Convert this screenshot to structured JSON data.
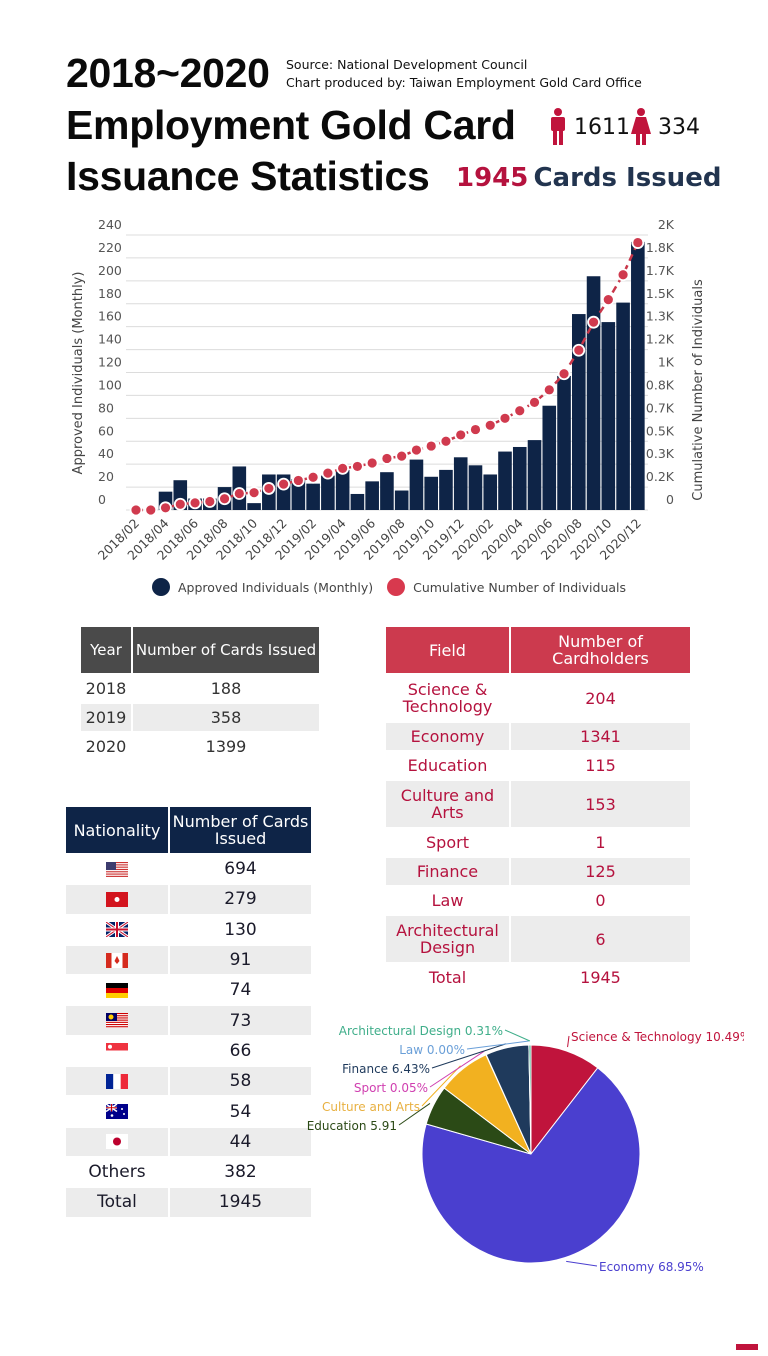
{
  "header": {
    "title_line1": "2018~2020",
    "title_line2": "Employment Gold Card",
    "title_line3": "Issuance Statistics",
    "source": "Source: National Development Council",
    "producer": "Chart produced by: Taiwan Employment Gold Card Office",
    "male_count": "1611",
    "female_count": "334",
    "total_count": "1945",
    "total_label": "Cards Issued",
    "male_icon": "male-person-icon",
    "female_icon": "female-person-icon"
  },
  "chart_data": [
    {
      "type": "bar+line",
      "ylabel": "Approved Individuals (Monthly)",
      "y2label": "Cumulative Number of Individuals",
      "ylim": [
        0,
        240
      ],
      "y2lim": [
        0,
        2000
      ],
      "yticks": [
        "0",
        "20",
        "40",
        "60",
        "80",
        "100",
        "120",
        "140",
        "160",
        "180",
        "200",
        "220",
        "240"
      ],
      "y2ticks": [
        "0",
        "0.2K",
        "0.3K",
        "0.5K",
        "0.7K",
        "0.8K",
        "1K",
        "1.2K",
        "1.3K",
        "1.5K",
        "1.7K",
        "1.8K",
        "2K"
      ],
      "grid": true,
      "legend_position": "bottom",
      "x": [
        "2018/02",
        "2018/03",
        "2018/04",
        "2018/05",
        "2018/06",
        "2018/07",
        "2018/08",
        "2018/09",
        "2018/10",
        "2018/11",
        "2018/12",
        "2019/01",
        "2019/02",
        "2019/03",
        "2019/04",
        "2019/05",
        "2019/06",
        "2019/07",
        "2019/08",
        "2019/09",
        "2019/10",
        "2019/11",
        "2019/12",
        "2020/01",
        "2020/02",
        "2020/03",
        "2020/04",
        "2020/05",
        "2020/06",
        "2020/07",
        "2020/08",
        "2020/09",
        "2020/10",
        "2020/11",
        "2020/12"
      ],
      "xticklabels": [
        "2018/02",
        "2018/04",
        "2018/06",
        "2018/08",
        "2018/10",
        "2018/12",
        "2019/02",
        "2019/04",
        "2019/06",
        "2019/08",
        "2019/10",
        "2019/12",
        "2020/02",
        "2020/04",
        "2020/06",
        "2020/08",
        "2020/10",
        "2020/12"
      ],
      "series": [
        {
          "name": "Approved Individuals (Monthly)",
          "type": "bar",
          "color": "#0e2447",
          "values": [
            0,
            0,
            16,
            26,
            10,
            10,
            20,
            38,
            6,
            31,
            31,
            27,
            23,
            30,
            35,
            14,
            25,
            33,
            17,
            44,
            29,
            35,
            46,
            39,
            31,
            51,
            55,
            61,
            91,
            117,
            171,
            204,
            164,
            181,
            234
          ]
        },
        {
          "name": "Cumulative Number of Individuals",
          "type": "line",
          "axis": "right",
          "color": "#c8374a",
          "values": [
            0,
            0,
            16,
            42,
            52,
            62,
            82,
            120,
            126,
            157,
            188,
            215,
            238,
            268,
            303,
            317,
            342,
            375,
            392,
            436,
            465,
            500,
            546,
            585,
            616,
            667,
            722,
            783,
            874,
            991,
            1162,
            1366,
            1530,
            1711,
            1945
          ]
        }
      ]
    },
    {
      "type": "pie",
      "slices": [
        {
          "label": "Science & Technology 10.49%",
          "value": 10.49,
          "color": "#c0143c"
        },
        {
          "label": "Economy 68.95%",
          "value": 68.95,
          "color": "#4a3fcf"
        },
        {
          "label": "Education 5.91",
          "value": 5.91,
          "color": "#2b4a16"
        },
        {
          "label": "Culture and Arts",
          "value": 7.87,
          "color": "#f2b120"
        },
        {
          "label": "Sport 0.05%",
          "value": 0.05,
          "color": "#d040b0"
        },
        {
          "label": "Finance 6.43%",
          "value": 6.43,
          "color": "#1f3a5c"
        },
        {
          "label": "Law 0.00%",
          "value": 0.0,
          "color": "#6a9fd8"
        },
        {
          "label": "Architectural Design 0.31%",
          "value": 0.31,
          "color": "#3fae8a"
        }
      ]
    }
  ],
  "year_table": {
    "headers": [
      "Year",
      "Number of Cards Issued"
    ],
    "rows": [
      [
        "2018",
        "188"
      ],
      [
        "2019",
        "358"
      ],
      [
        "2020",
        "1399"
      ]
    ]
  },
  "field_table": {
    "headers": [
      "Field",
      "Number of Cardholders"
    ],
    "rows": [
      [
        "Science & Technology",
        "204"
      ],
      [
        "Economy",
        "1341"
      ],
      [
        "Education",
        "115"
      ],
      [
        "Culture and Arts",
        "153"
      ],
      [
        "Sport",
        "1"
      ],
      [
        "Finance",
        "125"
      ],
      [
        "Law",
        "0"
      ],
      [
        "Architectural Design",
        "6"
      ],
      [
        "Total",
        "1945"
      ]
    ]
  },
  "nationality_table": {
    "headers": [
      "Nationality",
      "Number of Cards Issued"
    ],
    "rows": [
      {
        "flag": "flag-usa-icon",
        "value": "694"
      },
      {
        "flag": "flag-hong-kong-icon",
        "value": "279"
      },
      {
        "flag": "flag-uk-icon",
        "value": "130"
      },
      {
        "flag": "flag-canada-icon",
        "value": "91"
      },
      {
        "flag": "flag-germany-icon",
        "value": "74"
      },
      {
        "flag": "flag-malaysia-icon",
        "value": "73"
      },
      {
        "flag": "flag-singapore-icon",
        "value": "66"
      },
      {
        "flag": "flag-france-icon",
        "value": "58"
      },
      {
        "flag": "flag-australia-icon",
        "value": "54"
      },
      {
        "flag": "flag-japan-icon",
        "value": "44"
      },
      {
        "label": "Others",
        "value": "382"
      },
      {
        "label": "Total",
        "value": "1945"
      }
    ]
  }
}
